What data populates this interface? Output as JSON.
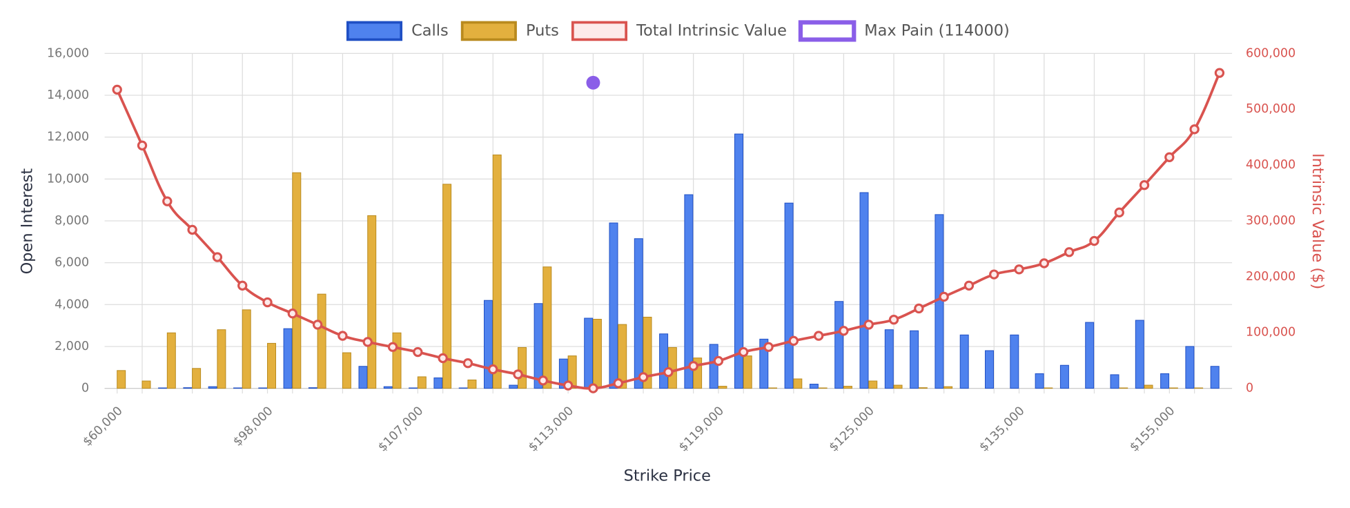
{
  "chart_data": {
    "type": "bar",
    "xlabel": "Strike Price",
    "ylabel": "Open Interest",
    "y2label": "Intrinsic Value ($)",
    "categories": [
      "$60,000",
      null,
      null,
      null,
      null,
      null,
      "$98,000",
      null,
      null,
      null,
      null,
      null,
      "$107,000",
      null,
      null,
      null,
      null,
      null,
      "$113,000",
      null,
      null,
      null,
      null,
      null,
      "$119,000",
      null,
      null,
      null,
      null,
      null,
      "$125,000",
      null,
      null,
      null,
      null,
      null,
      "$135,000",
      null,
      null,
      null,
      null,
      null,
      "$155,000",
      null,
      null
    ],
    "series": [
      {
        "name": "Calls",
        "type": "bar",
        "color": "#4f82ee",
        "border": "#1f4fc4",
        "values": [
          0,
          0,
          20,
          30,
          80,
          20,
          20,
          2850,
          30,
          0,
          1050,
          80,
          20,
          500,
          20,
          4200,
          150,
          4050,
          1400,
          3350,
          7900,
          7150,
          2600,
          9250,
          2100,
          12150,
          2350,
          8850,
          200,
          4150,
          9350,
          2800,
          2750,
          8300,
          2550,
          1800,
          2550,
          700,
          1100,
          3150,
          650,
          3250,
          700,
          2000,
          1050
        ]
      },
      {
        "name": "Puts",
        "type": "bar",
        "color": "#e3b03e",
        "border": "#b98a1e",
        "values": [
          850,
          350,
          2650,
          950,
          2800,
          3750,
          2150,
          10300,
          4500,
          1700,
          8250,
          2650,
          550,
          9750,
          400,
          11150,
          1950,
          5800,
          1550,
          3300,
          3050,
          3400,
          1950,
          1450,
          100,
          1550,
          20,
          450,
          20,
          100,
          350,
          150,
          30,
          80,
          0,
          0,
          0,
          20,
          0,
          0,
          20,
          150,
          20,
          20,
          0
        ]
      },
      {
        "name": "Total Intrinsic Value",
        "type": "line",
        "axis": "y2",
        "color": "#d9534f",
        "fill": "#fdeaea",
        "values": [
          535000,
          435000,
          335000,
          284000,
          235000,
          184000,
          154000,
          134000,
          114000,
          94000,
          83000,
          74000,
          65000,
          54000,
          45000,
          34000,
          25000,
          14000,
          5000,
          0,
          9000,
          20000,
          29000,
          40000,
          49000,
          65000,
          74000,
          85000,
          94000,
          103000,
          114000,
          123000,
          143000,
          164000,
          184000,
          204000,
          213000,
          224000,
          244000,
          264000,
          315000,
          364000,
          414000,
          464000,
          565000
        ]
      },
      {
        "name": "Max Pain (114000)",
        "type": "scatter",
        "color": "#8a5ee8",
        "values": [
          null,
          null,
          null,
          null,
          null,
          null,
          null,
          null,
          null,
          null,
          null,
          null,
          null,
          null,
          null,
          null,
          null,
          null,
          null,
          14600,
          null,
          null,
          null,
          null,
          null,
          null,
          null,
          null,
          null,
          null,
          null,
          null,
          null,
          null,
          null,
          null,
          null,
          null,
          null,
          null,
          null,
          null,
          null,
          null,
          null
        ]
      }
    ],
    "ylim": [
      0,
      16000
    ],
    "yticks": [
      0,
      {
        "value": 2000,
        "label": "2,000"
      },
      {
        "value": 4000,
        "label": "4,000"
      },
      {
        "value": 6000,
        "label": "6,000"
      },
      {
        "value": 8000,
        "label": "8,000"
      },
      {
        "value": 10000,
        "label": "10,000"
      },
      {
        "value": 12000,
        "label": "12,000"
      },
      {
        "value": 14000,
        "label": "14,000"
      },
      {
        "value": 16000,
        "label": "16,000"
      }
    ],
    "y2lim": [
      0,
      600000
    ],
    "y2ticks": [
      0,
      {
        "value": 100000,
        "label": "100,000"
      },
      {
        "value": 200000,
        "label": "200,000"
      },
      {
        "value": 300000,
        "label": "300,000"
      },
      {
        "value": 400000,
        "label": "400,000"
      },
      {
        "value": 500000,
        "label": "500,000"
      },
      {
        "value": 600000,
        "label": "600,000"
      }
    ],
    "grid": true,
    "legend": "top"
  }
}
